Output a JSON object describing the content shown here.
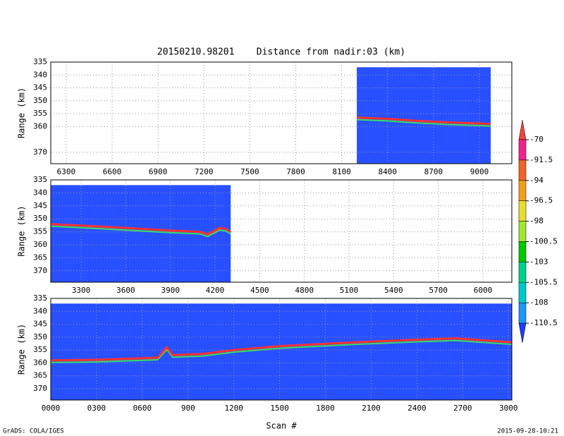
{
  "chart_data": {
    "type": "profile",
    "title": "20150210.98201    Distance from nadir:03 (km)",
    "xlabel": "Scan #",
    "footer_left": "GrADS: COLA/IGES",
    "footer_right": "2015-09-28-10:21",
    "background_color": "#2850ff",
    "surface_color": "#ff3030",
    "grid": true,
    "panels": [
      {
        "ylabel": "Range (km)",
        "xlim": [
          6199,
          9212
        ],
        "xticks": [
          6300,
          6600,
          6900,
          7200,
          7500,
          7800,
          8100,
          8400,
          8700,
          9000
        ],
        "ylim": [
          374.4,
          335
        ],
        "yticks": [
          335,
          340,
          345,
          350,
          355,
          360,
          370
        ],
        "coverage_x": [
          8199,
          9074
        ],
        "coverage_top": 337,
        "x": [
          8199,
          8400,
          8600,
          8800,
          9000,
          9074
        ],
        "values": [
          356.5,
          357,
          357.8,
          358.4,
          358.8,
          359
        ]
      },
      {
        "ylabel": "Range (km)",
        "xlim": [
          3096,
          6194
        ],
        "xticks": [
          3300,
          3600,
          3900,
          4200,
          4500,
          4800,
          5100,
          5400,
          5700,
          6000
        ],
        "ylim": [
          374.4,
          335
        ],
        "yticks": [
          335,
          340,
          345,
          350,
          355,
          360,
          365,
          370
        ],
        "coverage_x": [
          3096,
          4305
        ],
        "coverage_top": 337,
        "x": [
          3096,
          3300,
          3600,
          3900,
          4100,
          4150,
          4200,
          4230,
          4270,
          4305
        ],
        "values": [
          352,
          352.6,
          353.5,
          354.5,
          355,
          356,
          354.5,
          353.5,
          353.8,
          355
        ]
      },
      {
        "ylabel": "Range (km)",
        "xlim": [
          0,
          3022
        ],
        "xticks": [
          {
            "value": 0,
            "label": "0000"
          },
          {
            "value": 300,
            "label": "0300"
          },
          {
            "value": 600,
            "label": "0600"
          },
          900,
          1200,
          1500,
          1800,
          2100,
          2400,
          2700,
          3000
        ],
        "ylim": [
          374.4,
          335
        ],
        "yticks": [
          335,
          340,
          345,
          350,
          355,
          360,
          365,
          370
        ],
        "coverage_x": [
          0,
          3022
        ],
        "coverage_top": 337,
        "x": [
          0,
          300,
          700,
          760,
          800,
          1000,
          1200,
          1500,
          2000,
          2400,
          2650,
          3022
        ],
        "values": [
          359,
          358.8,
          358,
          354,
          357,
          356.5,
          355,
          353.5,
          352,
          351,
          350.5,
          352
        ]
      }
    ],
    "colorbar": {
      "levels": [
        -70,
        -91.5,
        -94,
        -96.5,
        -98,
        -100.5,
        -103,
        -105.5,
        -108,
        -110.5
      ],
      "colors": [
        "#f0463c",
        "#f0238c",
        "#f06428",
        "#f0a01e",
        "#e6dc32",
        "#a0e632",
        "#00c800",
        "#00d28c",
        "#00c8c8",
        "#1e96ff",
        "#1e3cff"
      ]
    }
  }
}
